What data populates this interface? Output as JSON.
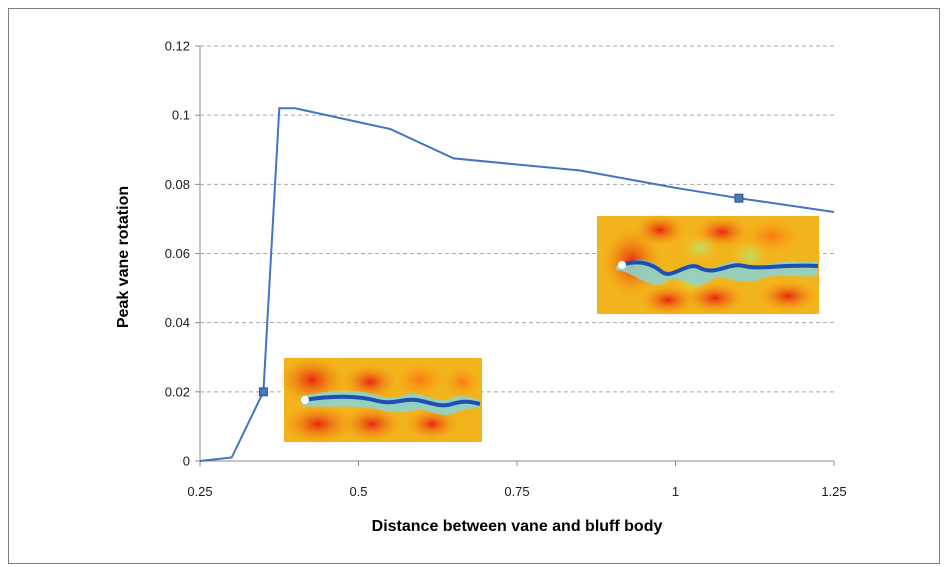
{
  "chart_data": {
    "type": "line",
    "title": "",
    "xlabel": "Distance between vane and bluff body",
    "ylabel": "Peak vane rotation",
    "xlim": [
      0.25,
      1.25
    ],
    "ylim": [
      0,
      0.12
    ],
    "x_ticks": [
      0.25,
      0.5,
      0.75,
      1,
      1.25
    ],
    "x_tick_labels": [
      "0.25",
      "0.5",
      "0.75",
      "1",
      "1.25"
    ],
    "y_ticks": [
      0,
      0.02,
      0.04,
      0.06,
      0.08,
      0.1,
      0.12
    ],
    "y_tick_labels": [
      "0",
      "0.02",
      "0.04",
      "0.06",
      "0.08",
      "0.1",
      "0.12"
    ],
    "grid": "horizontal dashed",
    "series": [
      {
        "color": "#4472c4",
        "x": [
          0.25,
          0.3,
          0.35,
          0.375,
          0.4,
          0.5,
          0.55,
          0.65,
          0.85,
          1.0,
          1.1,
          1.25
        ],
        "y": [
          0,
          0.001,
          0.02,
          0.102,
          0.102,
          0.098,
          0.096,
          0.0875,
          0.084,
          0.079,
          0.076,
          0.072
        ]
      }
    ],
    "markers": [
      {
        "x": 0.35,
        "y": 0.02,
        "color": "#4a7ab5"
      },
      {
        "x": 1.1,
        "y": 0.076,
        "color": "#4a7ab5"
      }
    ],
    "insets": [
      {
        "name": "wake-flow-field-near"
      },
      {
        "name": "wake-flow-field-far"
      }
    ]
  }
}
